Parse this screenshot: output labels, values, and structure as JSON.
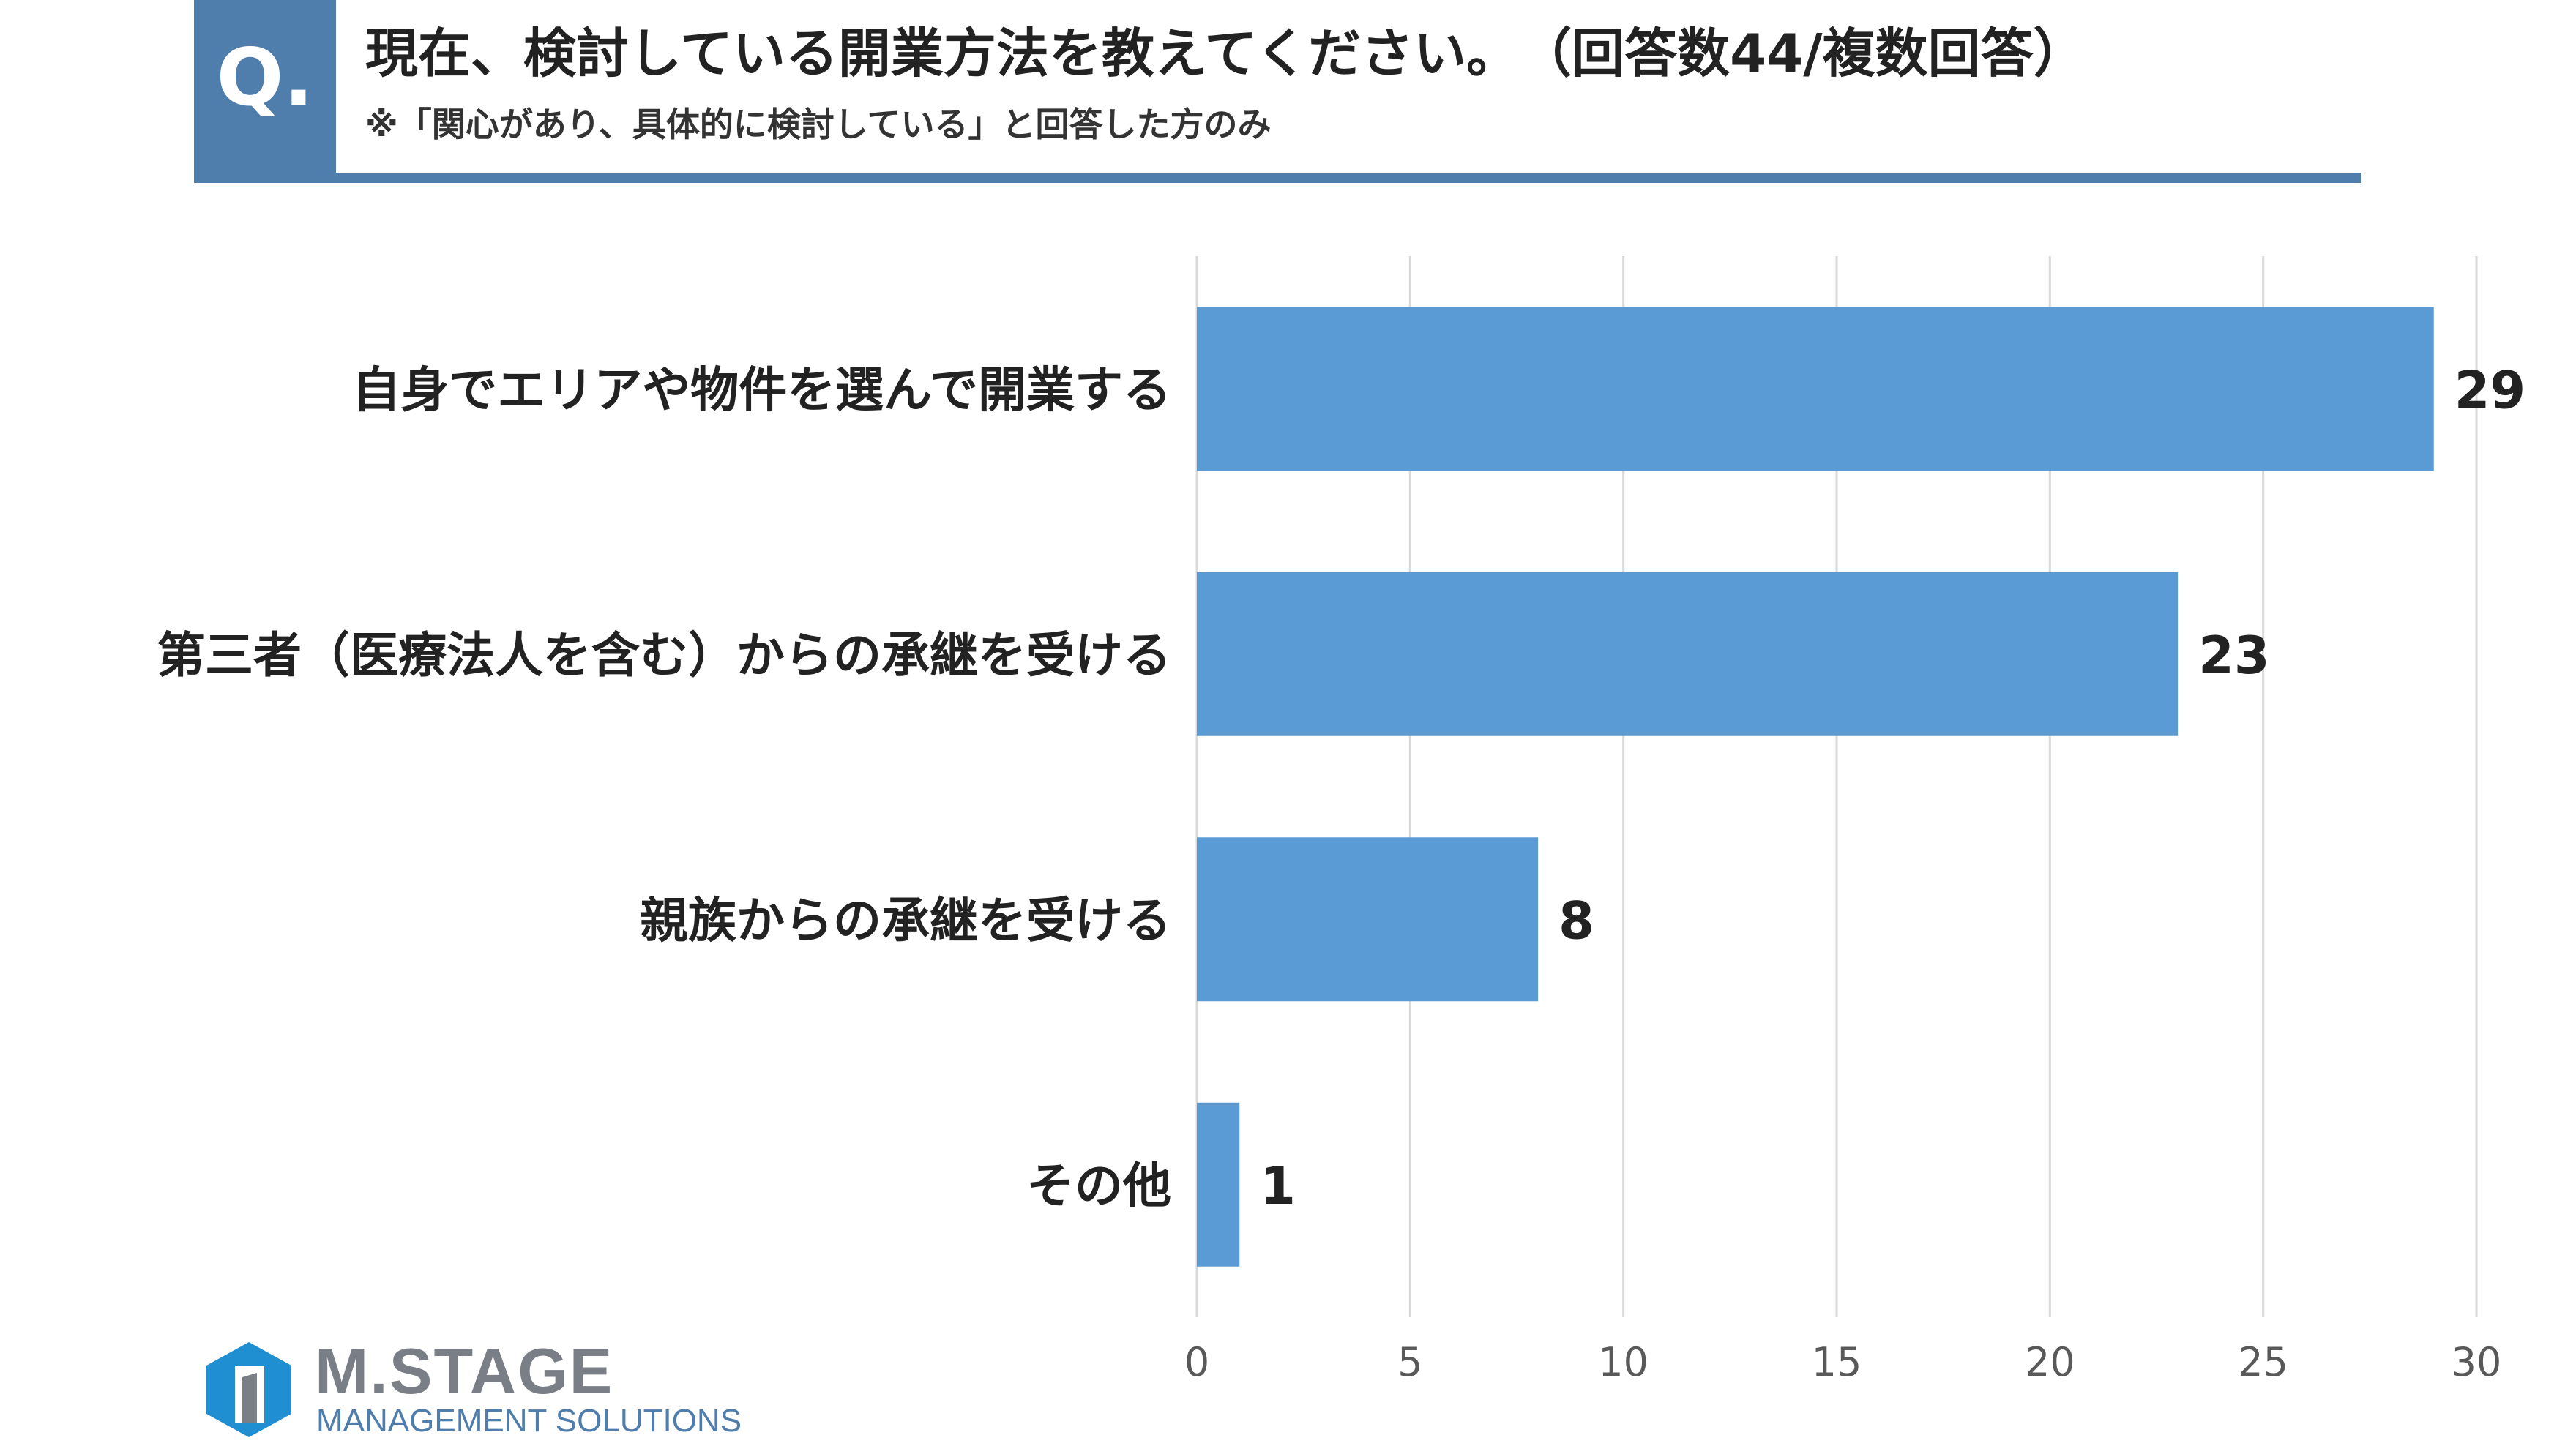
{
  "header": {
    "q_label": "Q.",
    "title": "現在、検討している開業方法を教えてください。　（回答数44/複数回答）",
    "subtitle": "※「関心があり、具体的に検討している」と回答した方のみ"
  },
  "chart_data": {
    "type": "bar",
    "orientation": "horizontal",
    "categories": [
      "自身でエリアや物件を選んで開業する",
      "第三者（医療法人を含む）からの承継を受ける",
      "親族からの承継を受ける",
      "その他"
    ],
    "values": [
      29,
      23,
      8,
      1
    ],
    "xlim": [
      0,
      30
    ],
    "x_ticks": [
      0,
      5,
      10,
      15,
      20,
      25,
      30
    ],
    "grid": "vertical",
    "bar_color": "#5b9bd5",
    "data_labels": true
  },
  "logo": {
    "name": "M.STAGE",
    "tagline": "MANAGEMENT SOLUTIONS",
    "colors": {
      "blue": "#1f8fd1",
      "gray": "#7a7f87"
    }
  },
  "colors": {
    "accent": "#4f7dac"
  }
}
